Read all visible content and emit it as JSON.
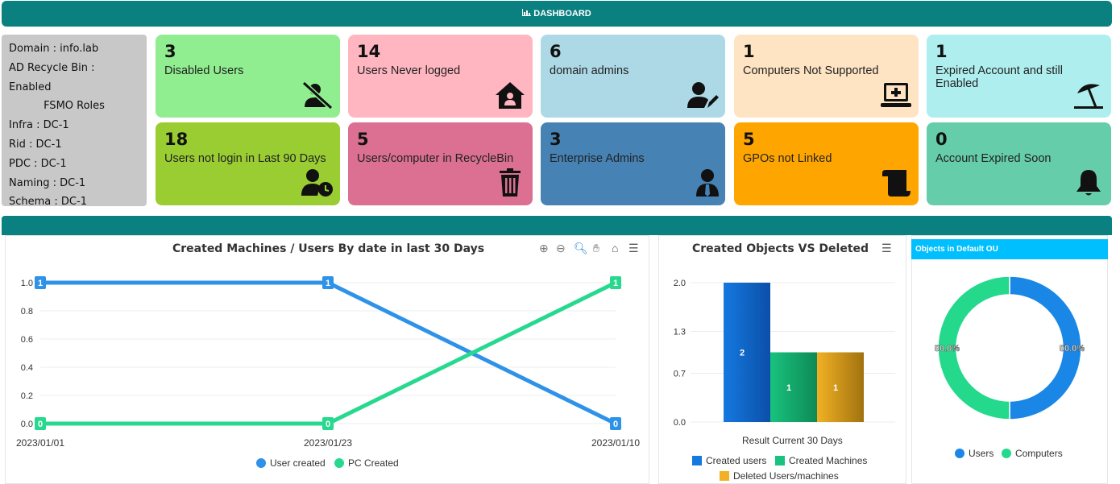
{
  "header": {
    "title": "DASHBOARD",
    "icon": "bar-chart-icon"
  },
  "info": {
    "domain": "Domain : info.lab",
    "recycle_bin": "AD Recycle Bin : Enabled",
    "fsmo": "FSMO Roles",
    "infra": "Infra : DC-1",
    "rid": "Rid : DC-1",
    "pdc": "PDC : DC-1",
    "naming": "Naming : DC-1",
    "schema": "Schema : DC-1"
  },
  "cards": [
    {
      "value": "3",
      "label": "Disabled Users",
      "color": "#90ee90",
      "icon": "user-slash-icon"
    },
    {
      "value": "14",
      "label": "Users Never logged",
      "color": "#ffb6c1",
      "icon": "house-user-icon"
    },
    {
      "value": "6",
      "label": "domain admins",
      "color": "#add8e6",
      "icon": "user-edit-icon"
    },
    {
      "value": "1",
      "label": "Computers Not Supported",
      "color": "#ffe4c4",
      "icon": "laptop-medical-icon"
    },
    {
      "value": "1",
      "label": "Expired Account and still Enabled",
      "color": "#afeeee",
      "icon": "umbrella-beach-icon"
    },
    {
      "value": "18",
      "label": "Users not login in Last 90 Days",
      "color": "#9acd32",
      "icon": "user-clock-icon"
    },
    {
      "value": "5",
      "label": "Users/computer in RecycleBin",
      "color": "#db7093",
      "icon": "trash-icon"
    },
    {
      "value": "3",
      "label": "Enterprise Admins",
      "color": "#4682b4",
      "icon": "user-tie-icon"
    },
    {
      "value": "5",
      "label": "GPOs not Linked",
      "color": "#ffa500",
      "icon": "scroll-icon"
    },
    {
      "value": "0",
      "label": "Account Expired Soon",
      "color": "#66cdaa",
      "icon": "bell-icon"
    }
  ],
  "chart_data": [
    {
      "type": "line",
      "title": "Created Machines / Users By date in last 30 Days",
      "categories": [
        "2023/01/01",
        "2023/01/23",
        "2023/01/10"
      ],
      "series": [
        {
          "name": "User created",
          "values": [
            1,
            1,
            0
          ],
          "color": "#2e93e8"
        },
        {
          "name": "PC Created",
          "values": [
            0,
            0,
            1
          ],
          "color": "#27d98f"
        }
      ],
      "yticks": [
        "0.0",
        "0.2",
        "0.4",
        "0.6",
        "0.8",
        "1.0"
      ],
      "ylim": [
        0,
        1
      ]
    },
    {
      "type": "bar",
      "title": "Created Objects VS Deleted",
      "xlabel": "Result Current 30 Days",
      "categories": [
        "Result Current 30 Days"
      ],
      "series": [
        {
          "name": "Created users",
          "values": [
            2
          ],
          "color": "#1579e0"
        },
        {
          "name": "Created Machines",
          "values": [
            1
          ],
          "color": "#19c27e"
        },
        {
          "name": "Deleted Users/machines",
          "values": [
            1
          ],
          "color": "#f2b124"
        }
      ],
      "yticks": [
        "0.0",
        "0.7",
        "1.3",
        "2.0"
      ],
      "ylim": [
        0,
        2
      ]
    },
    {
      "type": "pie",
      "title": "Objects in Default OU",
      "series": [
        {
          "name": "Users",
          "value": 50.0,
          "label": "50.0%",
          "color": "#1a87e6"
        },
        {
          "name": "Computers",
          "value": 50.0,
          "label": "50.0%",
          "color": "#24d98c"
        }
      ]
    }
  ]
}
